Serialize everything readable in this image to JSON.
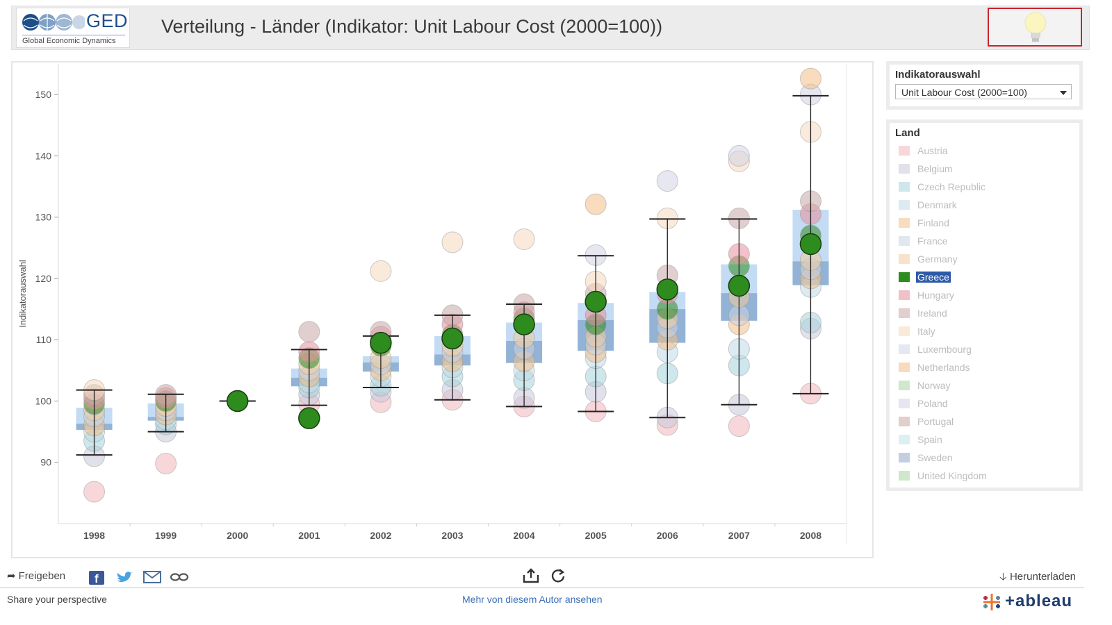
{
  "header": {
    "logo_text": "GED",
    "logo_subtitle": "Global Economic Dynamics",
    "title": "Verteilung - Länder (Indikator: Unit Labour Cost (2000=100))",
    "bulb_icon": "lightbulb-icon"
  },
  "indicator_panel": {
    "title": "Indikatorauswahl",
    "selected": "Unit Labour Cost (2000=100)"
  },
  "land_panel": {
    "title": "Land",
    "items": [
      {
        "label": "Austria",
        "color": "#f2b7bd"
      },
      {
        "label": "Belgium",
        "color": "#c9c9dc"
      },
      {
        "label": "Czech Republic",
        "color": "#a5d4dd"
      },
      {
        "label": "Denmark",
        "color": "#bfdbe6"
      },
      {
        "label": "Finland",
        "color": "#f2c089"
      },
      {
        "label": "France",
        "color": "#c9d3e3"
      },
      {
        "label": "Germany",
        "color": "#f3cc9e"
      },
      {
        "label": "Greece",
        "color": "#2e8b1e",
        "active": true
      },
      {
        "label": "Hungary",
        "color": "#e98e9c"
      },
      {
        "label": "Ireland",
        "color": "#c9a7a7"
      },
      {
        "label": "Italy",
        "color": "#f6d9bd"
      },
      {
        "label": "Luxembourg",
        "color": "#d1d4e6"
      },
      {
        "label": "Netherlands",
        "color": "#f3bf86"
      },
      {
        "label": "Norway",
        "color": "#a8d7a2"
      },
      {
        "label": "Poland",
        "color": "#d3d3e4"
      },
      {
        "label": "Portugal",
        "color": "#c7a9a3"
      },
      {
        "label": "Spain",
        "color": "#c4e2ea"
      },
      {
        "label": "Sweden",
        "color": "#8fa9c9"
      },
      {
        "label": "United Kingdom",
        "color": "#a8d7a2"
      }
    ]
  },
  "chart_data": {
    "type": "scatter",
    "subtype": "box-plot",
    "title": "Verteilung - Länder (Indikator: Unit Labour Cost (2000=100))",
    "ylabel": "Indikatorauswahl",
    "xlabel": "",
    "ylim": [
      80,
      155
    ],
    "yticks": [
      90,
      100,
      110,
      120,
      130,
      140,
      150
    ],
    "categories": [
      "1998",
      "1999",
      "2000",
      "2001",
      "2002",
      "2003",
      "2004",
      "2005",
      "2006",
      "2007",
      "2008"
    ],
    "highlight_series": "Greece",
    "greece": [
      null,
      null,
      100,
      97.2,
      109.5,
      110.2,
      112.5,
      116.2,
      118.2,
      118.8,
      125.6
    ],
    "boxes": [
      {
        "min": 91.2,
        "q1": 95.3,
        "median": 96.3,
        "q3": 98.9,
        "max": 101.8
      },
      {
        "min": 95.0,
        "q1": 96.8,
        "median": 97.4,
        "q3": 99.6,
        "max": 101.1
      },
      {
        "min": 100,
        "q1": 100,
        "median": 100,
        "q3": 100,
        "max": 100
      },
      {
        "min": 99.3,
        "q1": 102.4,
        "median": 103.8,
        "q3": 105.3,
        "max": 108.4
      },
      {
        "min": 102.2,
        "q1": 104.8,
        "median": 106.3,
        "q3": 107.3,
        "max": 110.6
      },
      {
        "min": 100.2,
        "q1": 105.8,
        "median": 107.6,
        "q3": 110.6,
        "max": 114.0
      },
      {
        "min": 99.1,
        "q1": 106.2,
        "median": 109.8,
        "q3": 112.8,
        "max": 115.8
      },
      {
        "min": 98.3,
        "q1": 108.2,
        "median": 113.2,
        "q3": 116.0,
        "max": 123.7
      },
      {
        "min": 97.3,
        "q1": 109.5,
        "median": 115.0,
        "q3": 117.8,
        "max": 129.7
      },
      {
        "min": 99.4,
        "q1": 113.1,
        "median": 117.6,
        "q3": 122.3,
        "max": 129.7
      },
      {
        "min": 101.2,
        "q1": 118.9,
        "median": 122.8,
        "q3": 131.2,
        "max": 149.8
      }
    ],
    "points": [
      [
        85.2,
        91.0,
        93.5,
        95.0,
        96.0,
        97.5,
        98.5,
        99.5,
        100.3,
        101.0,
        101.8
      ],
      [
        89.8,
        95.0,
        96.2,
        97.0,
        97.8,
        98.5,
        99.2,
        100.0,
        100.5,
        101.0
      ],
      [],
      [
        99.5,
        101.0,
        102.2,
        103.0,
        104.0,
        105.0,
        106.0,
        107.0,
        108.0,
        111.3
      ],
      [
        99.8,
        101.5,
        102.5,
        104.0,
        105.0,
        106.0,
        107.0,
        109.0,
        110.5,
        111.3,
        121.2
      ],
      [
        100.2,
        101.8,
        104.0,
        105.5,
        106.5,
        108.0,
        109.0,
        110.8,
        112.5,
        114.0,
        125.9
      ],
      [
        99.1,
        100.5,
        103.4,
        105.0,
        106.5,
        108.5,
        110.3,
        113.5,
        114.5,
        115.8,
        126.4
      ],
      [
        98.3,
        101.5,
        104.0,
        107.0,
        108.0,
        109.2,
        110.5,
        112.5,
        114.0,
        117.5,
        119.5,
        123.8,
        132.1
      ],
      [
        96.1,
        97.3,
        104.5,
        108.0,
        110.0,
        112.0,
        113.5,
        115.0,
        117.5,
        120.5,
        129.8,
        135.9
      ],
      [
        95.9,
        99.4,
        105.8,
        108.5,
        112.5,
        114.0,
        117.0,
        122.0,
        124.0,
        129.8,
        139.1,
        140.0
      ],
      [
        101.2,
        111.8,
        112.8,
        118.6,
        120.0,
        121.5,
        123.0,
        127.0,
        130.5,
        132.6,
        143.9,
        150.0,
        152.6
      ]
    ]
  },
  "toolbar": {
    "share_label": "Freigeben",
    "download_label": "Herunterladen"
  },
  "footer": {
    "left_text": "Share your perspective",
    "mid_link": "Mehr von diesem Autor ansehen",
    "brand": "+ableau"
  }
}
